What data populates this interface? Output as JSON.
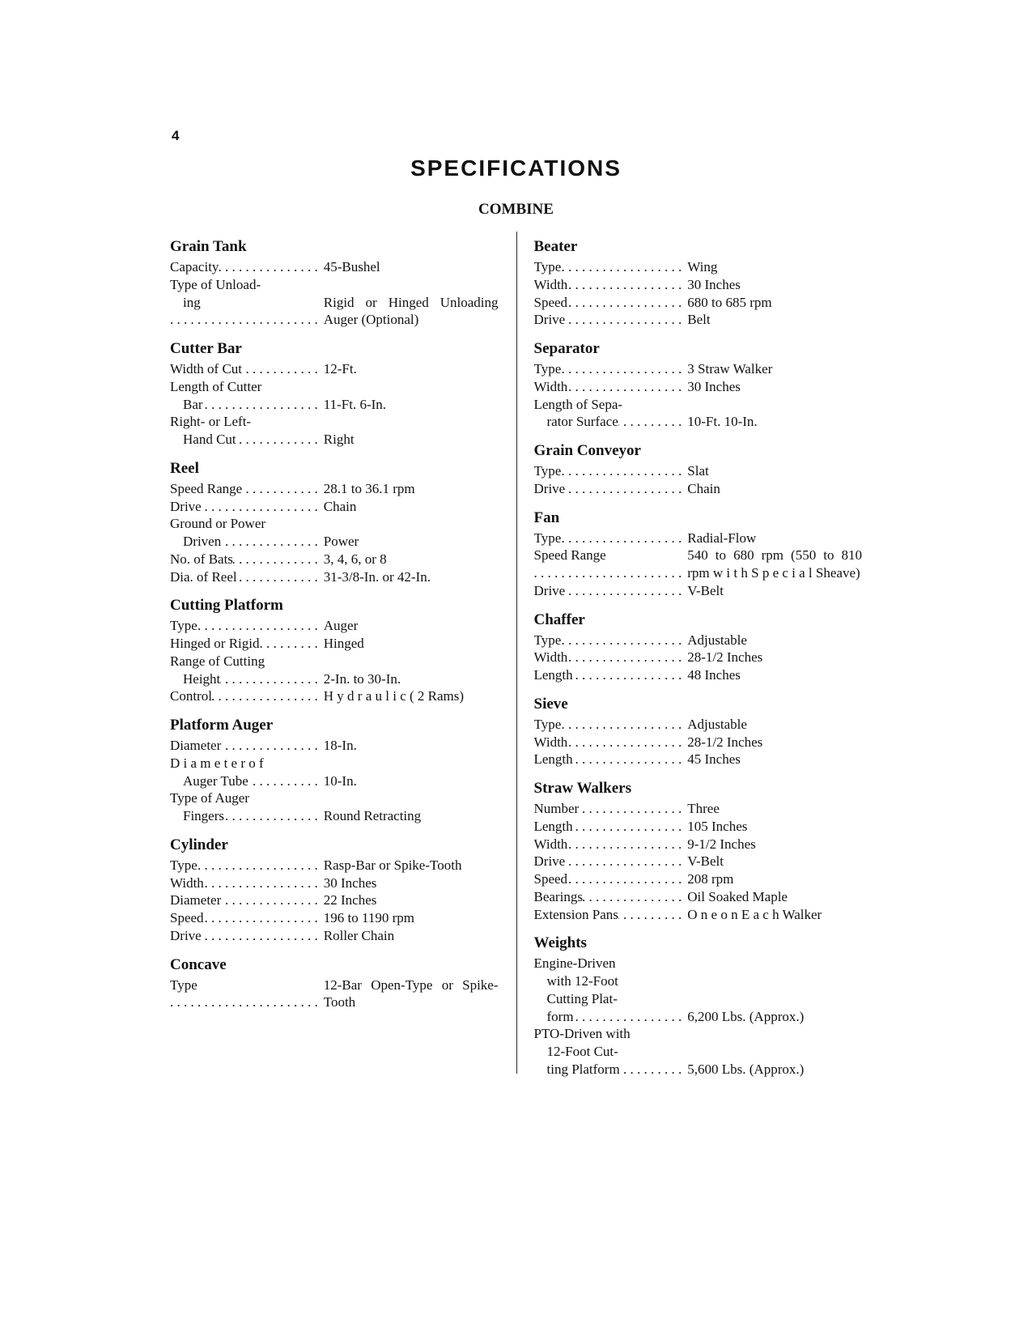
{
  "page_number": "4",
  "title": "SPECIFICATIONS",
  "subtitle": "COMBINE",
  "left": [
    {
      "section": "Grain Tank",
      "rows": [
        {
          "label": "Capacity",
          "value": "45-Bushel"
        },
        {
          "label": "Type of Unload-",
          "nolead": true,
          "wrap": true
        },
        {
          "label": "ing",
          "indent": true,
          "value": "Rigid or Hinged Unloading Auger (Optional)"
        }
      ]
    },
    {
      "section": "Cutter Bar",
      "rows": [
        {
          "label": "Width of Cut",
          "value": "12-Ft."
        },
        {
          "label": "Length of Cutter",
          "nolead": true,
          "wrap": true
        },
        {
          "label": "Bar",
          "indent": true,
          "value": "11-Ft. 6-In."
        },
        {
          "label": "Right- or Left-",
          "nolead": true,
          "wrap": true
        },
        {
          "label": "Hand Cut",
          "indent": true,
          "value": "Right"
        }
      ]
    },
    {
      "section": "Reel",
      "rows": [
        {
          "label": "Speed Range",
          "value": "28.1 to 36.1 rpm"
        },
        {
          "label": "Drive",
          "value": "Chain"
        },
        {
          "label": "Ground or Power",
          "nolead": true,
          "wrap": true
        },
        {
          "label": "Driven",
          "indent": true,
          "value": "Power"
        },
        {
          "label": "No. of Bats",
          "value": "3, 4, 6, or 8"
        },
        {
          "label": "Dia. of Reel",
          "value": "31-3/8-In. or 42-In."
        }
      ]
    },
    {
      "section": "Cutting Platform",
      "rows": [
        {
          "label": "Type",
          "value": "Auger"
        },
        {
          "label": "Hinged or Rigid",
          "value": "Hinged"
        },
        {
          "label": "Range of Cutting",
          "nolead": true,
          "wrap": true
        },
        {
          "label": "Height",
          "indent": true,
          "value": "2-In. to 30-In."
        },
        {
          "label": "Control",
          "value": "H y d r a u l i c  ( 2 Rams)"
        }
      ]
    },
    {
      "section": "Platform Auger",
      "rows": [
        {
          "label": "Diameter",
          "value": "18-In."
        },
        {
          "label": "D i a m e t e r  o f",
          "nolead": true,
          "wrap": true
        },
        {
          "label": "Auger Tube",
          "indent": true,
          "value": "10-In."
        },
        {
          "label": "Type of Auger",
          "nolead": true,
          "wrap": true
        },
        {
          "label": "Fingers",
          "indent": true,
          "value": "Round Retracting"
        }
      ]
    },
    {
      "section": "Cylinder",
      "rows": [
        {
          "label": "Type",
          "value": "Rasp-Bar or Spike-Tooth"
        },
        {
          "label": "Width",
          "value": "30 Inches"
        },
        {
          "label": "Diameter",
          "value": "22 Inches"
        },
        {
          "label": "Speed",
          "value": "196 to 1190 rpm"
        },
        {
          "label": "Drive",
          "value": "Roller Chain"
        }
      ]
    },
    {
      "section": "Concave",
      "rows": [
        {
          "label": "Type",
          "value": "12-Bar Open-Type or Spike-Tooth"
        }
      ]
    }
  ],
  "right": [
    {
      "section": "Beater",
      "rows": [
        {
          "label": "Type",
          "value": "Wing"
        },
        {
          "label": "Width",
          "value": "30 Inches"
        },
        {
          "label": "Speed",
          "value": "680 to 685 rpm"
        },
        {
          "label": "Drive",
          "value": "Belt"
        }
      ]
    },
    {
      "section": "Separator",
      "rows": [
        {
          "label": "Type",
          "value": "3 Straw Walker"
        },
        {
          "label": "Width",
          "value": "30 Inches"
        },
        {
          "label": "Length of Sepa-",
          "nolead": true,
          "wrap": true
        },
        {
          "label": "rator Surface",
          "indent": true,
          "value": "10-Ft. 10-In."
        }
      ]
    },
    {
      "section": "Grain Conveyor",
      "rows": [
        {
          "label": "Type",
          "value": "Slat"
        },
        {
          "label": "Drive",
          "value": "Chain"
        }
      ]
    },
    {
      "section": "Fan",
      "rows": [
        {
          "label": "Type",
          "value": "Radial-Flow"
        },
        {
          "label": "Speed Range",
          "value": "540 to 680 rpm (550 to 810 rpm w i t h  S p e c i a l Sheave)"
        },
        {
          "label": "Drive",
          "value": "V-Belt"
        }
      ]
    },
    {
      "section": "Chaffer",
      "rows": [
        {
          "label": "Type",
          "value": "Adjustable"
        },
        {
          "label": "Width",
          "value": "28-1/2 Inches"
        },
        {
          "label": "Length",
          "value": "48 Inches"
        }
      ]
    },
    {
      "section": "Sieve",
      "rows": [
        {
          "label": "Type",
          "value": "Adjustable"
        },
        {
          "label": "Width",
          "value": "28-1/2 Inches"
        },
        {
          "label": "Length",
          "value": "45 Inches"
        }
      ]
    },
    {
      "section": "Straw Walkers",
      "rows": [
        {
          "label": "Number",
          "value": "Three"
        },
        {
          "label": "Length",
          "value": "105 Inches"
        },
        {
          "label": "Width",
          "value": "9-1/2 Inches"
        },
        {
          "label": "Drive",
          "value": "V-Belt"
        },
        {
          "label": "Speed",
          "value": "208 rpm"
        },
        {
          "label": "Bearings",
          "value": "Oil Soaked Maple"
        },
        {
          "label": "Extension Pans",
          "value": "O n e  o n  E a c h Walker"
        }
      ]
    },
    {
      "section": "Weights",
      "rows": [
        {
          "label": "Engine-Driven",
          "nolead": true,
          "wrap": true
        },
        {
          "label": "with 12-Foot",
          "indent": true,
          "nolead": true,
          "wrap": true
        },
        {
          "label": "Cutting Plat-",
          "indent": true,
          "nolead": true,
          "wrap": true
        },
        {
          "label": "form",
          "indent": true,
          "value": "6,200 Lbs. (Approx.)"
        },
        {
          "label": "PTO-Driven with",
          "nolead": true,
          "wrap": true
        },
        {
          "label": "12-Foot Cut-",
          "indent": true,
          "nolead": true,
          "wrap": true
        },
        {
          "label": "ting Platform",
          "indent": true,
          "value": "5,600 Lbs. (Approx.)"
        }
      ]
    }
  ]
}
